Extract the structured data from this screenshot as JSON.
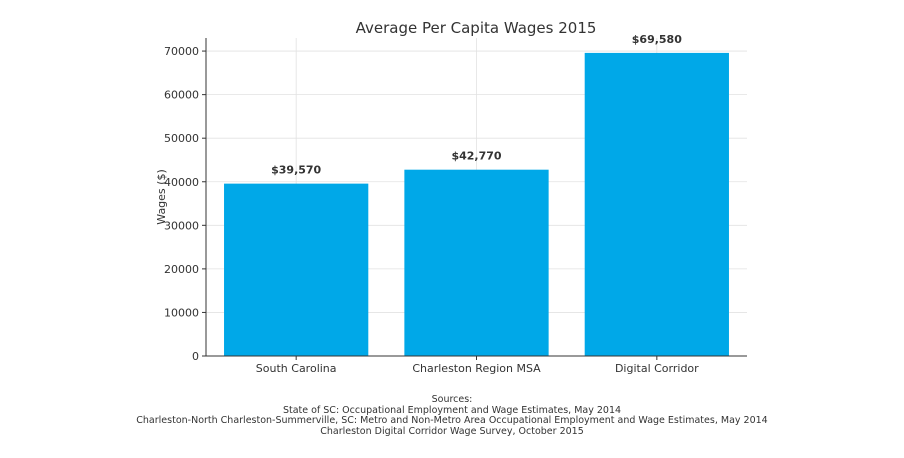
{
  "chart_data": {
    "type": "bar",
    "title": "Average Per Capita Wages 2015",
    "xlabel": "",
    "ylabel": "Wages ($)",
    "categories": [
      "South Carolina",
      "Charleston Region MSA",
      "Digital Corridor"
    ],
    "values": [
      39570,
      42770,
      69580
    ],
    "data_labels": [
      "$39,570",
      "$42,770",
      "$69,580"
    ],
    "ylim": [
      0,
      73000
    ],
    "yticks": [
      0,
      10000,
      20000,
      30000,
      40000,
      50000,
      60000,
      70000
    ],
    "ytick_labels": [
      "0",
      "10000",
      "20000",
      "30000",
      "40000",
      "50000",
      "60000",
      "70000"
    ],
    "grid": true,
    "bar_color": "#00a8e8"
  },
  "footnote": {
    "heading": "Sources:",
    "lines": [
      "State of SC: Occupational Employment and Wage Estimates, May 2014",
      "Charleston-North Charleston-Summerville, SC: Metro and Non-Metro Area Occupational Employment and Wage Estimates, May 2014",
      "Charleston Digital Corridor Wage Survey, October 2015"
    ]
  }
}
